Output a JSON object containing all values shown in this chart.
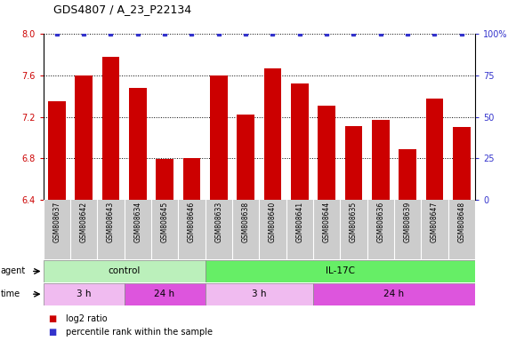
{
  "title": "GDS4807 / A_23_P22134",
  "samples": [
    "GSM808637",
    "GSM808642",
    "GSM808643",
    "GSM808634",
    "GSM808645",
    "GSM808646",
    "GSM808633",
    "GSM808638",
    "GSM808640",
    "GSM808641",
    "GSM808644",
    "GSM808635",
    "GSM808636",
    "GSM808639",
    "GSM808647",
    "GSM808648"
  ],
  "log2_values": [
    7.35,
    7.6,
    7.78,
    7.48,
    6.79,
    6.8,
    7.6,
    7.22,
    7.67,
    7.52,
    7.31,
    7.11,
    7.17,
    6.89,
    7.38,
    7.1
  ],
  "percentile_values": [
    100,
    100,
    100,
    100,
    100,
    100,
    100,
    100,
    100,
    100,
    100,
    100,
    100,
    100,
    100,
    100
  ],
  "bar_color": "#cc0000",
  "dot_color": "#3333cc",
  "ylim_left": [
    6.4,
    8.0
  ],
  "yticks_left": [
    6.4,
    6.8,
    7.2,
    7.6,
    8.0
  ],
  "ylim_right": [
    0,
    100
  ],
  "yticks_right": [
    0,
    25,
    50,
    75,
    100
  ],
  "yticklabels_right": [
    "0",
    "25",
    "50",
    "75",
    "100%"
  ],
  "agent_groups": [
    {
      "label": "control",
      "start": 0,
      "end": 6,
      "color": "#bbf0bb"
    },
    {
      "label": "IL-17C",
      "start": 6,
      "end": 16,
      "color": "#66ee66"
    }
  ],
  "time_groups": [
    {
      "label": "3 h",
      "start": 0,
      "end": 3,
      "color": "#f0bbf0"
    },
    {
      "label": "24 h",
      "start": 3,
      "end": 6,
      "color": "#dd55dd"
    },
    {
      "label": "3 h",
      "start": 6,
      "end": 10,
      "color": "#f0bbf0"
    },
    {
      "label": "24 h",
      "start": 10,
      "end": 16,
      "color": "#dd55dd"
    }
  ],
  "legend_bar_color": "#cc0000",
  "legend_dot_color": "#3333cc",
  "legend_text1": "log2 ratio",
  "legend_text2": "percentile rank within the sample",
  "background_color": "#ffffff",
  "tick_label_color_left": "#cc0000",
  "tick_label_color_right": "#3333cc"
}
